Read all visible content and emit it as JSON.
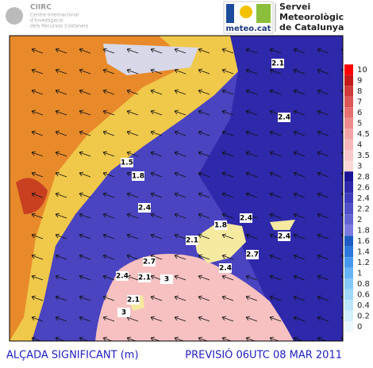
{
  "header": {
    "left_logo": {
      "name": "CIIRC",
      "lines": [
        "Centre Internacional",
        "d'Investigació",
        "dels Recursos Costaners"
      ]
    },
    "right_logo": {
      "name": "meteo.cat",
      "lines": [
        "Servei",
        "Meteorològic",
        "de Catalunya"
      ]
    }
  },
  "legend": {
    "items": [
      {
        "label": "10",
        "color": "#ff0000"
      },
      {
        "label": "9",
        "color": "#c41a1a"
      },
      {
        "label": "8",
        "color": "#d03a3a"
      },
      {
        "label": "7",
        "color": "#dc5656"
      },
      {
        "label": "6",
        "color": "#e47070"
      },
      {
        "label": "5",
        "color": "#ec8c8c"
      },
      {
        "label": "4.5",
        "color": "#f2a4a4"
      },
      {
        "label": "4",
        "color": "#f6b8b8"
      },
      {
        "label": "3.5",
        "color": "#f9c8c8"
      },
      {
        "label": "3",
        "color": "#fcd8d4"
      },
      {
        "label": "2.8",
        "color": "#1c1496"
      },
      {
        "label": "2.6",
        "color": "#2e28aa"
      },
      {
        "label": "2.4",
        "color": "#3e3cbc"
      },
      {
        "label": "2.2",
        "color": "#5050c8"
      },
      {
        "label": "2",
        "color": "#6464d4"
      },
      {
        "label": "1.8",
        "color": "#7c7ce0"
      },
      {
        "label": "1.6",
        "color": "#1e5cc4"
      },
      {
        "label": "1.4",
        "color": "#2c78dc"
      },
      {
        "label": "1.2",
        "color": "#4898ee"
      },
      {
        "label": "1",
        "color": "#66b4f6"
      },
      {
        "label": "0.8",
        "color": "#84c8f8"
      },
      {
        "label": "0.6",
        "color": "#a0d8fa"
      },
      {
        "label": "0.4",
        "color": "#bce6fc"
      },
      {
        "label": "0.2",
        "color": "#d4f0fd"
      },
      {
        "label": "0",
        "color": "#ecf9ff"
      }
    ]
  },
  "contour_labels": [
    "2.1",
    "2.4",
    "1.5",
    "1.8",
    "2.4",
    "2.1",
    "1.8",
    "2.4",
    "2.4",
    "2.7",
    "3",
    "2.7",
    "2.4",
    "2.4",
    "2.1",
    "2.1",
    "3"
  ],
  "footer": {
    "left": "ALÇADA SIGNIFICANT (m)",
    "right": "PREVISIÓ 06UTC 08 MAR 2011"
  }
}
